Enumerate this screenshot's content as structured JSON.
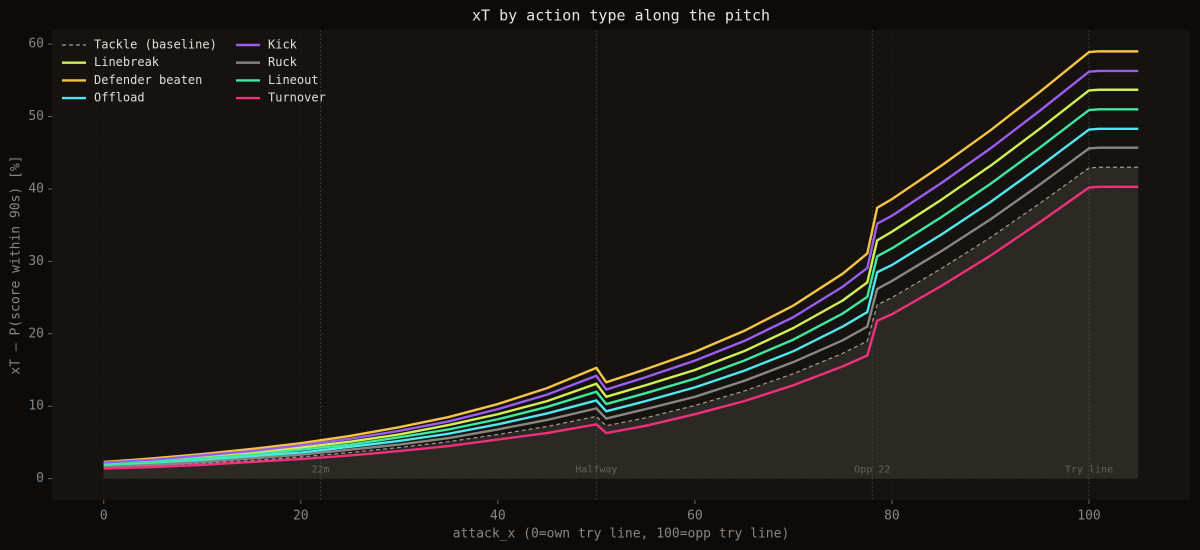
{
  "chart_data": {
    "type": "line",
    "title": "xT by action type along the pitch",
    "xlabel": "attack_x (0=own try line, 100=opp try line)",
    "ylabel": "xT — P(score within 90s) [%]",
    "x": [
      0,
      5,
      10,
      15,
      20,
      25,
      30,
      35,
      40,
      45,
      50,
      51,
      55,
      60,
      65,
      70,
      75,
      77.5,
      78.5,
      80,
      85,
      90,
      95,
      100,
      101,
      105
    ],
    "series": [
      {
        "name": "Tackle (baseline)",
        "color": "#a39b93",
        "dashed": true,
        "fill": true,
        "values": [
          1.5,
          1.8,
          2.1,
          2.5,
          3.0,
          3.6,
          4.3,
          5.1,
          6.1,
          7.2,
          8.6,
          7.3,
          8.4,
          10.1,
          12.1,
          14.5,
          17.3,
          19.0,
          24.0,
          25.0,
          29.0,
          33.3,
          38.0,
          42.9,
          43.0,
          43.0
        ]
      },
      {
        "name": "Linebreak",
        "color": "#d4f050",
        "values": [
          2.0,
          2.4,
          3.0,
          3.6,
          4.3,
          5.1,
          6.1,
          7.4,
          8.9,
          10.7,
          13.1,
          11.3,
          12.9,
          15.0,
          17.6,
          20.8,
          24.6,
          27.1,
          32.9,
          34.1,
          38.5,
          43.2,
          48.3,
          53.6,
          53.7,
          53.7
        ]
      },
      {
        "name": "Defender beaten",
        "color": "#f5c542",
        "values": [
          2.3,
          2.8,
          3.4,
          4.1,
          4.9,
          5.9,
          7.1,
          8.5,
          10.3,
          12.5,
          15.3,
          13.3,
          15.1,
          17.5,
          20.4,
          23.9,
          28.3,
          31.1,
          37.4,
          38.6,
          43.2,
          48.1,
          53.4,
          58.9,
          59.0,
          59.0
        ]
      },
      {
        "name": "Offload",
        "color": "#4ee8f0",
        "values": [
          1.8,
          2.1,
          2.5,
          3.1,
          3.6,
          4.4,
          5.2,
          6.2,
          7.5,
          9.0,
          10.8,
          9.3,
          10.7,
          12.6,
          14.9,
          17.6,
          21.0,
          23.0,
          28.5,
          29.5,
          33.7,
          38.2,
          43.1,
          48.2,
          48.3,
          48.3
        ]
      },
      {
        "name": "Kick",
        "color": "#9b5cf0",
        "values": [
          2.2,
          2.6,
          3.2,
          3.8,
          4.6,
          5.5,
          6.6,
          7.9,
          9.6,
          11.6,
          14.2,
          12.3,
          14.0,
          16.3,
          19.0,
          22.3,
          26.5,
          29.1,
          35.2,
          36.3,
          40.8,
          45.6,
          50.8,
          56.2,
          56.3,
          56.3
        ]
      },
      {
        "name": "Ruck",
        "color": "#8a8580",
        "values": [
          1.6,
          1.9,
          2.3,
          2.8,
          3.3,
          4.0,
          4.7,
          5.6,
          6.8,
          8.1,
          9.7,
          8.3,
          9.6,
          11.3,
          13.5,
          16.1,
          19.1,
          21.0,
          26.2,
          27.3,
          31.4,
          35.8,
          40.6,
          45.6,
          45.7,
          45.7
        ]
      },
      {
        "name": "Lineout",
        "color": "#3de8a0",
        "values": [
          1.9,
          2.3,
          2.8,
          3.3,
          4.0,
          4.7,
          5.7,
          6.8,
          8.2,
          9.9,
          12.0,
          10.3,
          11.8,
          13.8,
          16.3,
          19.2,
          22.8,
          25.1,
          30.7,
          31.8,
          36.1,
          40.7,
          45.7,
          50.9,
          51.0,
          51.0
        ]
      },
      {
        "name": "Turnover",
        "color": "#f0307a",
        "values": [
          1.4,
          1.6,
          1.9,
          2.3,
          2.7,
          3.2,
          3.8,
          4.5,
          5.4,
          6.3,
          7.5,
          6.3,
          7.3,
          8.9,
          10.7,
          12.9,
          15.5,
          17.0,
          21.8,
          22.7,
          26.6,
          30.8,
          35.4,
          40.2,
          40.3,
          40.3
        ]
      }
    ],
    "markers": [
      {
        "x": 22,
        "label": "22m"
      },
      {
        "x": 50,
        "label": "Halfway"
      },
      {
        "x": 78,
        "label": "Opp 22"
      },
      {
        "x": 100,
        "label": "Try line"
      }
    ],
    "xlim": [
      -5.25,
      110.25
    ],
    "ylim": [
      -2.95,
      61.95
    ],
    "xticks": [
      0,
      20,
      40,
      60,
      80,
      100
    ],
    "yticks": [
      0,
      10,
      20,
      30,
      40,
      50,
      60
    ],
    "grid": true,
    "legend": "upper left"
  }
}
